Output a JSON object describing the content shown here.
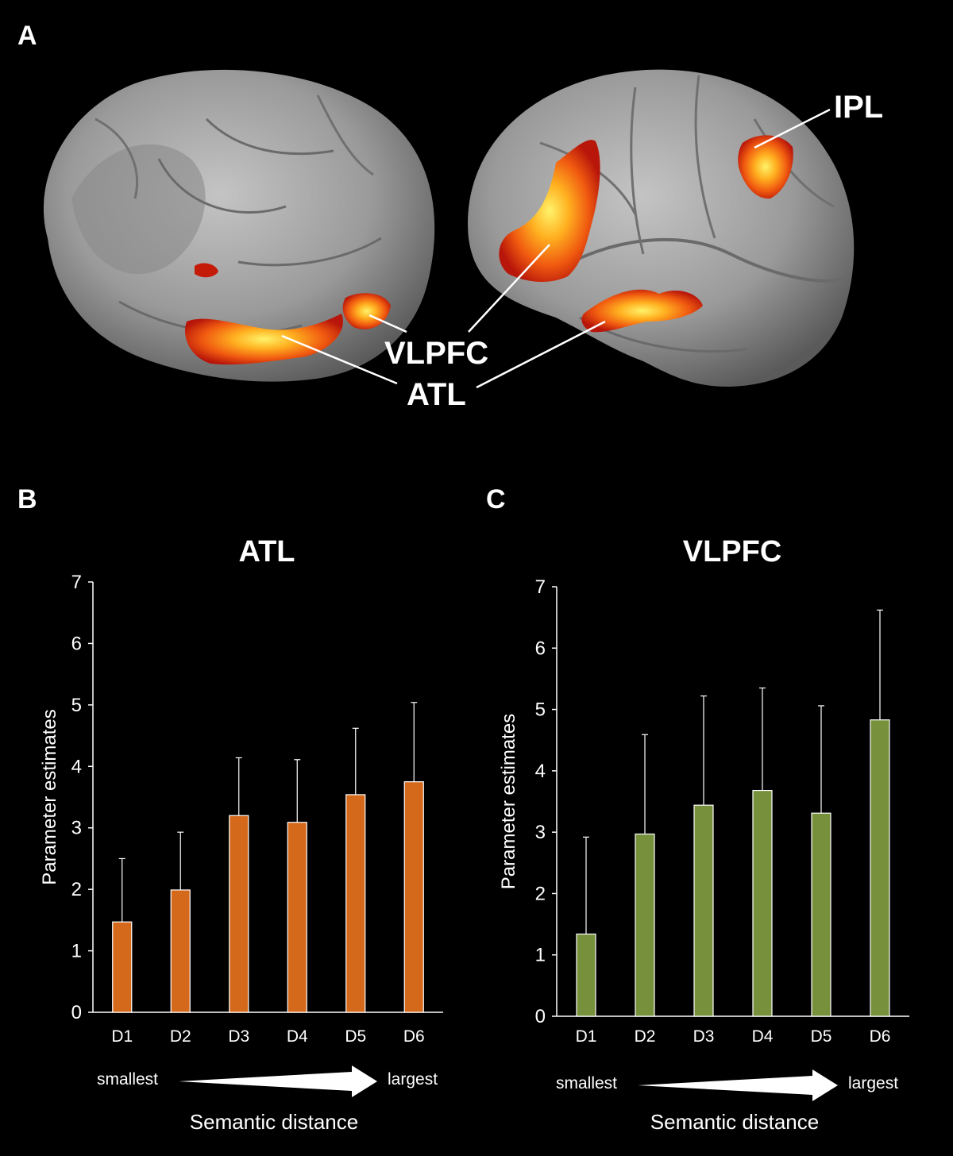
{
  "panels": {
    "a": "A",
    "b": "B",
    "c": "C"
  },
  "brain_labels": {
    "ipl": "IPL",
    "vlpfc": "VLPFC",
    "atl": "ATL"
  },
  "colors": {
    "background": "#000000",
    "atl_bar": "#d4691c",
    "vlpfc_bar": "#76903c",
    "activation_hot": "#ffe84a",
    "activation_mid": "#ff7a10",
    "activation_low": "#c41a08",
    "brain": "#9a9a9a"
  },
  "chart_data": [
    {
      "type": "bar",
      "title": "ATL",
      "categories": [
        "D1",
        "D2",
        "D3",
        "D4",
        "D5",
        "D6"
      ],
      "values": [
        1.47,
        1.99,
        3.2,
        3.09,
        3.54,
        3.75
      ],
      "error_upper": [
        1.03,
        0.94,
        0.94,
        1.02,
        1.08,
        1.29
      ],
      "ylabel": "Parameter estimates",
      "xlabel": "Semantic distance",
      "ylim": [
        0,
        7
      ],
      "yticks": [
        "0",
        "1",
        "2",
        "3",
        "4",
        "5",
        "6",
        "7"
      ],
      "arrow_start_label": "smallest",
      "arrow_end_label": "largest",
      "bar_color": "#d4691c",
      "grid": false
    },
    {
      "type": "bar",
      "title": "VLPFC",
      "categories": [
        "D1",
        "D2",
        "D3",
        "D4",
        "D5",
        "D6"
      ],
      "values": [
        1.34,
        2.97,
        3.44,
        3.68,
        3.31,
        4.83
      ],
      "error_upper": [
        1.58,
        1.62,
        1.78,
        1.67,
        1.75,
        1.79
      ],
      "ylabel": "Parameter estimates",
      "xlabel": "Semantic distance",
      "ylim": [
        0,
        7
      ],
      "yticks": [
        "0",
        "1",
        "2",
        "3",
        "4",
        "5",
        "6",
        "7"
      ],
      "arrow_start_label": "smallest",
      "arrow_end_label": "largest",
      "bar_color": "#76903c",
      "grid": false
    }
  ]
}
